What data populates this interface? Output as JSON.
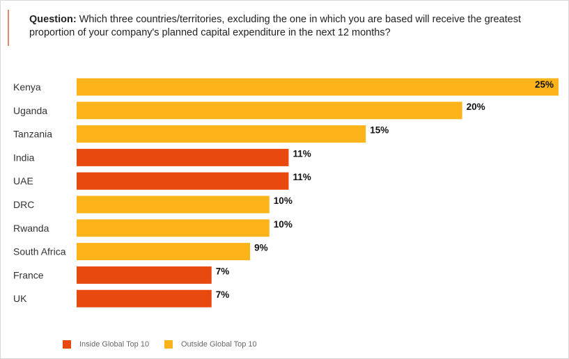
{
  "question": {
    "label": "Question:",
    "text": " Which three countries/territories, excluding the one in which you are based will receive the greatest proportion of your company's planned capital expenditure in the next 12 months?"
  },
  "colors": {
    "inside": "#e8490f",
    "outside": "#fdb41b",
    "accent": "#e8866a"
  },
  "chart_data": {
    "type": "bar",
    "orientation": "horizontal",
    "title": "Which three countries/territories, excluding the one in which you are based will receive the greatest proportion of your company's planned capital expenditure in the next 12 months?",
    "categories": [
      "Kenya",
      "Uganda",
      "Tanzania",
      "India",
      "UAE",
      "DRC",
      "Rwanda",
      "South Africa",
      "France",
      "UK"
    ],
    "values": [
      25,
      20,
      15,
      11,
      11,
      10,
      10,
      9,
      7,
      7
    ],
    "labels": [
      "25%",
      "20%",
      "15%",
      "11%",
      "11%",
      "10%",
      "10%",
      "9%",
      "7%",
      "7%"
    ],
    "group": [
      "outside",
      "outside",
      "outside",
      "inside",
      "inside",
      "outside",
      "outside",
      "outside",
      "inside",
      "inside"
    ],
    "xlim": [
      0,
      25
    ],
    "grid": false,
    "legend": {
      "placement": "bottom-left",
      "entries": [
        {
          "key": "inside",
          "label": "Inside Global Top 10"
        },
        {
          "key": "outside",
          "label": "Outside Global Top 10"
        }
      ]
    }
  }
}
